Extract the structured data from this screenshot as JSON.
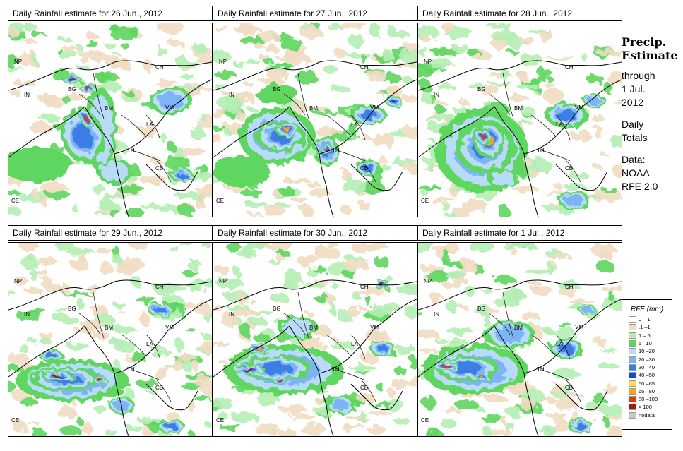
{
  "panels": [
    {
      "title": "Daily Rainfall estimate for  26 Jun., 2012"
    },
    {
      "title": "Daily Rainfall estimate for  27 Jun., 2012"
    },
    {
      "title": "Daily Rainfall estimate for  28 Jun., 2012"
    },
    {
      "title": "Daily Rainfall estimate for  29 Jun., 2012"
    },
    {
      "title": "Daily Rainfall estimate for  30 Jun., 2012"
    },
    {
      "title": "Daily Rainfall estimate for  1 Jul., 2012"
    }
  ],
  "country_labels": [
    "NP",
    "IN",
    "BG",
    "BM",
    "CH",
    "VM",
    "LA",
    "TH",
    "CB",
    "CE"
  ],
  "side": {
    "title_line1": "Precip.",
    "title_line2": "Estimate",
    "through": "through",
    "date_line1": "1 Jul.",
    "date_line2": "2012",
    "totals_line1": "Daily",
    "totals_line2": "Totals",
    "data_line1": "Data:",
    "data_line2": "NOAA–",
    "data_line3": "RFE 2.0"
  },
  "legend": {
    "title": "RFE (mm)",
    "items": [
      {
        "label": "0 – 1",
        "color": "#ffffff"
      },
      {
        "label": ".1 –1",
        "color": "#f0dcc2"
      },
      {
        "label": "1 – 5",
        "color": "#b4eeb4"
      },
      {
        "label": "5 –10",
        "color": "#5ed65e"
      },
      {
        "label": "10 –20",
        "color": "#b8dcf8"
      },
      {
        "label": "20 –30",
        "color": "#7cb4f4"
      },
      {
        "label": "30 –40",
        "color": "#3c7ee6"
      },
      {
        "label": "40 –50",
        "color": "#1848cc"
      },
      {
        "label": "50 –65",
        "color": "#fbdc5a"
      },
      {
        "label": "65 –80",
        "color": "#fba21e"
      },
      {
        "label": "80 –100",
        "color": "#e8360c"
      },
      {
        "label": "> 100",
        "color": "#a01c10"
      },
      {
        "label": "nodata",
        "color": "#c8c8c8"
      }
    ]
  }
}
